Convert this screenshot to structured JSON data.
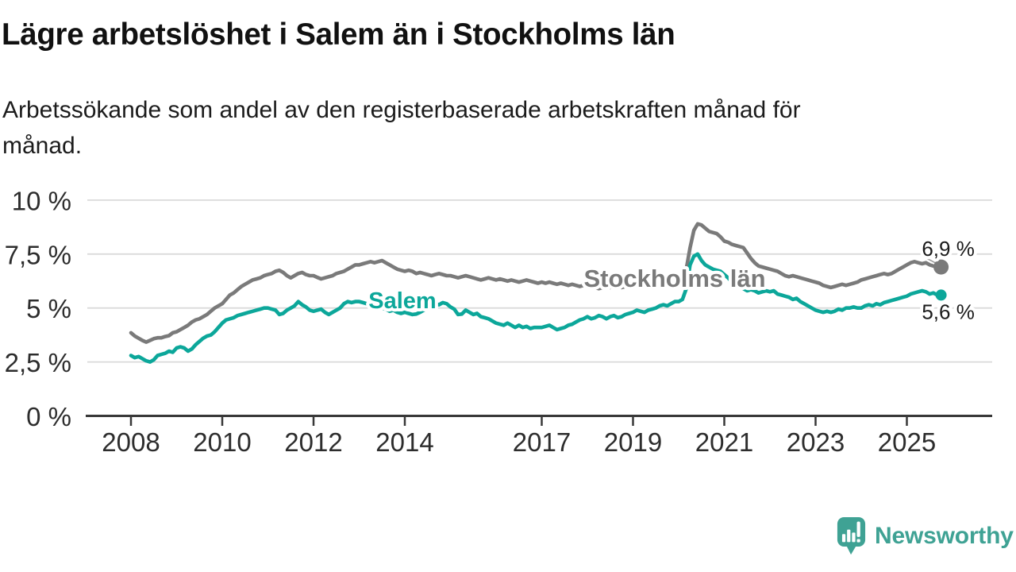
{
  "chart_data": {
    "type": "line",
    "title": "Lägre arbetslöshet i Salem än i Stockholms län",
    "subtitle_line1": "Arbetssökande som andel av den registerbaserade arbetskraften månad för",
    "subtitle_line2": "månad.",
    "unit": "%",
    "frequency": "monthly",
    "start": "2008-01",
    "end": "2025-10",
    "grid": true,
    "legend": "inline-labels",
    "ylim": [
      0,
      10
    ],
    "y_ticks": [
      0,
      2.5,
      5,
      7.5,
      10
    ],
    "y_tick_labels": [
      "0 %",
      "2,5 %",
      "5 %",
      "7,5 %",
      "10 %"
    ],
    "x_ticks": [
      2008,
      2010,
      2012,
      2014,
      2017,
      2019,
      2021,
      2023,
      2025
    ],
    "x_tick_labels": [
      "2008",
      "2010",
      "2012",
      "2014",
      "2017",
      "2019",
      "2021",
      "2023",
      "2025"
    ],
    "series": [
      {
        "name": "Stockholms län",
        "color": "#7a7a7a",
        "end_label": "6,9 %",
        "end_marker": "dot",
        "values": [
          3.85,
          3.7,
          3.6,
          3.5,
          3.42,
          3.5,
          3.58,
          3.62,
          3.62,
          3.68,
          3.72,
          3.85,
          3.9,
          4.0,
          4.1,
          4.2,
          4.35,
          4.45,
          4.5,
          4.6,
          4.7,
          4.85,
          5.0,
          5.1,
          5.2,
          5.4,
          5.6,
          5.7,
          5.85,
          6.0,
          6.1,
          6.2,
          6.3,
          6.35,
          6.4,
          6.5,
          6.55,
          6.6,
          6.7,
          6.75,
          6.65,
          6.5,
          6.4,
          6.5,
          6.6,
          6.65,
          6.55,
          6.5,
          6.5,
          6.42,
          6.35,
          6.4,
          6.45,
          6.5,
          6.6,
          6.65,
          6.7,
          6.8,
          6.9,
          7.0,
          7.0,
          7.05,
          7.1,
          7.15,
          7.1,
          7.15,
          7.2,
          7.1,
          7.0,
          6.9,
          6.8,
          6.75,
          6.7,
          6.75,
          6.7,
          6.6,
          6.65,
          6.6,
          6.55,
          6.5,
          6.55,
          6.6,
          6.55,
          6.5,
          6.5,
          6.45,
          6.4,
          6.45,
          6.5,
          6.45,
          6.4,
          6.35,
          6.3,
          6.35,
          6.4,
          6.35,
          6.3,
          6.35,
          6.3,
          6.25,
          6.3,
          6.25,
          6.2,
          6.25,
          6.3,
          6.25,
          6.2,
          6.15,
          6.2,
          6.15,
          6.2,
          6.15,
          6.1,
          6.15,
          6.1,
          6.05,
          6.1,
          6.05,
          6.0,
          6.05,
          6.0,
          6.05,
          5.95,
          5.9,
          5.95,
          6.0,
          5.95,
          6.05,
          6.0,
          5.95,
          6.0,
          6.05,
          6.0,
          6.05,
          6.1,
          6.05,
          6.1,
          6.1,
          6.15,
          6.1,
          6.1,
          6.15,
          6.2,
          6.2,
          6.3,
          6.4,
          6.8,
          7.8,
          8.6,
          8.9,
          8.85,
          8.7,
          8.55,
          8.5,
          8.45,
          8.3,
          8.1,
          8.05,
          7.95,
          7.9,
          7.85,
          7.8,
          7.55,
          7.3,
          7.1,
          6.95,
          6.9,
          6.85,
          6.8,
          6.75,
          6.7,
          6.6,
          6.5,
          6.45,
          6.5,
          6.45,
          6.4,
          6.35,
          6.3,
          6.25,
          6.2,
          6.15,
          6.05,
          6.0,
          5.95,
          6.0,
          6.05,
          6.1,
          6.05,
          6.1,
          6.15,
          6.2,
          6.3,
          6.35,
          6.4,
          6.45,
          6.5,
          6.55,
          6.6,
          6.55,
          6.6,
          6.7,
          6.8,
          6.9,
          7.0,
          7.1,
          7.15,
          7.1,
          7.05,
          7.1,
          7.0,
          6.95,
          6.9,
          6.9
        ]
      },
      {
        "name": "Salem",
        "color": "#0ca79a",
        "end_label": "5,6 %",
        "end_marker": "dot",
        "values": [
          2.8,
          2.7,
          2.75,
          2.65,
          2.55,
          2.5,
          2.6,
          2.8,
          2.85,
          2.9,
          3.0,
          2.95,
          3.15,
          3.2,
          3.15,
          3.0,
          3.1,
          3.3,
          3.45,
          3.6,
          3.7,
          3.75,
          3.9,
          4.1,
          4.3,
          4.45,
          4.5,
          4.55,
          4.65,
          4.7,
          4.75,
          4.8,
          4.85,
          4.9,
          4.95,
          5.0,
          5.0,
          4.95,
          4.9,
          4.7,
          4.75,
          4.9,
          5.0,
          5.1,
          5.3,
          5.15,
          5.05,
          4.9,
          4.85,
          4.9,
          4.95,
          4.8,
          4.7,
          4.8,
          4.9,
          5.0,
          5.2,
          5.3,
          5.25,
          5.3,
          5.3,
          5.25,
          5.2,
          5.1,
          5.05,
          5.1,
          5.0,
          4.95,
          4.85,
          4.9,
          4.8,
          4.75,
          4.8,
          4.75,
          4.7,
          4.72,
          4.8,
          4.9,
          5.0,
          5.1,
          5.2,
          5.15,
          5.25,
          5.2,
          5.05,
          4.95,
          4.7,
          4.72,
          4.9,
          4.8,
          4.7,
          4.75,
          4.6,
          4.55,
          4.5,
          4.4,
          4.3,
          4.25,
          4.2,
          4.3,
          4.2,
          4.1,
          4.2,
          4.1,
          4.15,
          4.05,
          4.1,
          4.1,
          4.1,
          4.15,
          4.2,
          4.1,
          4.0,
          4.05,
          4.1,
          4.2,
          4.25,
          4.35,
          4.45,
          4.5,
          4.6,
          4.5,
          4.55,
          4.65,
          4.6,
          4.5,
          4.6,
          4.65,
          4.55,
          4.6,
          4.7,
          4.75,
          4.8,
          4.9,
          4.85,
          4.8,
          4.9,
          4.95,
          5.0,
          5.1,
          5.15,
          5.1,
          5.2,
          5.3,
          5.3,
          5.4,
          5.9,
          7.0,
          7.4,
          7.5,
          7.2,
          7.0,
          6.9,
          6.8,
          6.75,
          6.7,
          6.55,
          6.4,
          6.2,
          6.1,
          6.0,
          5.9,
          5.8,
          5.85,
          5.8,
          5.7,
          5.75,
          5.8,
          5.75,
          5.8,
          5.65,
          5.6,
          5.55,
          5.5,
          5.4,
          5.45,
          5.3,
          5.2,
          5.1,
          5.0,
          4.9,
          4.85,
          4.8,
          4.85,
          4.8,
          4.85,
          4.95,
          4.9,
          5.0,
          5.0,
          5.05,
          5.0,
          5.0,
          5.1,
          5.15,
          5.1,
          5.2,
          5.15,
          5.25,
          5.3,
          5.35,
          5.4,
          5.45,
          5.5,
          5.55,
          5.65,
          5.7,
          5.75,
          5.8,
          5.75,
          5.65,
          5.7,
          5.6,
          5.6
        ]
      }
    ]
  },
  "footer": {
    "brand": "Newsworthy",
    "brand_color": "#3fa294",
    "logo_icon": "speech-bubble-bar-chart-icon"
  }
}
